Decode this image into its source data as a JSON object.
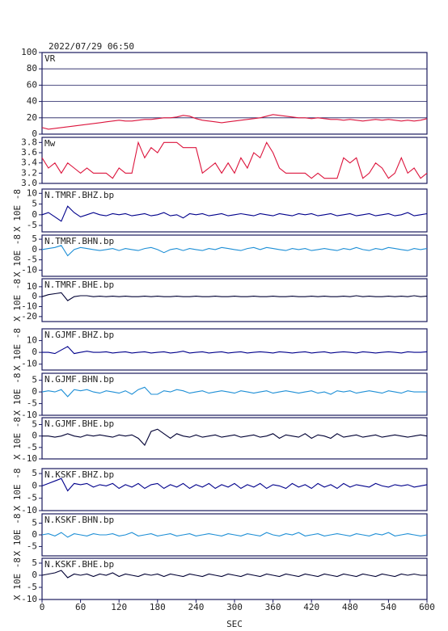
{
  "chart_data": {
    "type": "multi-panel",
    "title": "2022/07/29  06:50",
    "xlabel": "SEC",
    "xlim": [
      0,
      600
    ],
    "xticks": [
      0,
      60,
      120,
      180,
      240,
      300,
      360,
      420,
      480,
      540,
      600
    ],
    "x": [
      0,
      10,
      20,
      30,
      40,
      50,
      60,
      70,
      80,
      90,
      100,
      110,
      120,
      130,
      140,
      150,
      160,
      170,
      180,
      190,
      200,
      210,
      220,
      230,
      240,
      250,
      260,
      270,
      280,
      290,
      300,
      310,
      320,
      330,
      340,
      350,
      360,
      370,
      380,
      390,
      400,
      410,
      420,
      430,
      440,
      450,
      460,
      470,
      480,
      490,
      500,
      510,
      520,
      530,
      540,
      550,
      560,
      570,
      580,
      590,
      600
    ],
    "panels": [
      {
        "label": "VR",
        "color": "#dc143c",
        "ylim": [
          0,
          100
        ],
        "yticks": [
          0,
          20,
          40,
          60,
          80,
          100
        ],
        "grid": true,
        "values": [
          8,
          6,
          7,
          8,
          9,
          10,
          11,
          12,
          13,
          14,
          15,
          16,
          17,
          16,
          16,
          17,
          18,
          18,
          19,
          20,
          20,
          21,
          23,
          22,
          19,
          17,
          16,
          15,
          14,
          15,
          16,
          17,
          18,
          19,
          20,
          22,
          24,
          23,
          22,
          21,
          20,
          20,
          19,
          20,
          19,
          18,
          18,
          17,
          18,
          17,
          16,
          17,
          18,
          17,
          18,
          17,
          16,
          17,
          16,
          17,
          19
        ]
      },
      {
        "label": "Mw",
        "color": "#dc143c",
        "ylim": [
          3.0,
          3.9
        ],
        "yticks": [
          {
            "value": 3,
            "label": "3.0"
          },
          3.2,
          3.4,
          3.6,
          3.8
        ],
        "grid": false,
        "values": [
          3.5,
          3.3,
          3.4,
          3.2,
          3.4,
          3.3,
          3.2,
          3.3,
          3.2,
          3.2,
          3.2,
          3.1,
          3.3,
          3.2,
          3.2,
          3.8,
          3.5,
          3.7,
          3.6,
          3.8,
          3.8,
          3.8,
          3.7,
          3.7,
          3.7,
          3.2,
          3.3,
          3.4,
          3.2,
          3.4,
          3.2,
          3.5,
          3.3,
          3.6,
          3.5,
          3.8,
          3.6,
          3.3,
          3.2,
          3.2,
          3.2,
          3.2,
          3.1,
          3.2,
          3.1,
          3.1,
          3.1,
          3.5,
          3.4,
          3.5,
          3.1,
          3.2,
          3.4,
          3.3,
          3.1,
          3.2,
          3.5,
          3.2,
          3.3,
          3.1,
          3.2
        ]
      },
      {
        "label": "N.TMRF.BHZ.bp",
        "ylabel": "X 10E -8",
        "color": "#00008b",
        "ylim": [
          -8,
          12
        ],
        "yticks": [
          -5,
          0,
          5,
          10
        ],
        "grid": false,
        "values": [
          0,
          1,
          -1,
          -3,
          4,
          1,
          -1,
          0,
          1,
          0,
          -0.5,
          0.5,
          0,
          0.5,
          -0.5,
          0,
          0.5,
          -0.5,
          0,
          1,
          -0.5,
          0,
          -1.5,
          0.5,
          0,
          0.5,
          -0.5,
          0,
          0.5,
          -0.5,
          0,
          0.5,
          0,
          -0.5,
          0.5,
          0,
          -0.5,
          0.5,
          0,
          -0.5,
          0.5,
          0,
          0.5,
          -0.5,
          0,
          0.5,
          -0.5,
          0,
          0.5,
          -0.5,
          0,
          0.5,
          -0.5,
          0,
          0.5,
          -0.5,
          0,
          1,
          -0.5,
          0,
          0.5
        ]
      },
      {
        "label": "N.TMRF.BHN.bp",
        "ylabel": "X 10E -8",
        "color": "#1e8fd6",
        "ylim": [
          -13,
          7
        ],
        "yticks": [
          -10,
          -5,
          0,
          5
        ],
        "grid": false,
        "values": [
          0,
          0.5,
          1,
          2,
          -3,
          0,
          1,
          0.5,
          0,
          -0.5,
          0,
          0.5,
          -0.5,
          0.5,
          0,
          -0.5,
          0.5,
          1,
          0,
          -1.5,
          0,
          0.5,
          -0.5,
          0.5,
          0,
          -0.5,
          0.5,
          0,
          1,
          0.5,
          0,
          -0.5,
          0.5,
          1,
          0,
          1,
          0.5,
          0,
          -0.5,
          0.5,
          0,
          0.5,
          -0.5,
          0,
          0.5,
          0,
          -0.5,
          0.5,
          0,
          1,
          0,
          -0.5,
          0.5,
          0,
          1,
          0.5,
          0,
          -0.5,
          0.5,
          0,
          0.5
        ]
      },
      {
        "label": "N.TMRF.BHE.bp",
        "ylabel": "X 10E -8",
        "color": "#000033",
        "ylim": [
          -25,
          18
        ],
        "yticks": [
          -20,
          -10,
          0,
          10
        ],
        "grid": false,
        "values": [
          0,
          2,
          3,
          4,
          -4,
          0,
          1,
          1,
          0,
          0.5,
          0,
          0.5,
          0,
          0.5,
          0,
          0,
          0.5,
          0,
          0.5,
          0,
          0,
          0.5,
          0,
          0,
          0.5,
          0,
          0,
          0.5,
          0,
          0,
          0.5,
          0,
          0,
          0.5,
          0,
          0,
          0.5,
          0,
          0,
          0.5,
          0,
          0,
          0.5,
          0,
          0.5,
          0,
          0,
          0.5,
          0,
          1,
          0,
          0.5,
          0,
          0,
          0.5,
          0,
          0.5,
          0,
          1,
          0,
          0.5
        ]
      },
      {
        "label": "N.GJMF.BHZ.bp",
        "ylabel": "X 10E -8",
        "color": "#00008b",
        "ylim": [
          -15,
          20
        ],
        "yticks": [
          -10,
          0,
          10
        ],
        "grid": false,
        "values": [
          0,
          0,
          -1,
          2,
          5,
          -1,
          0,
          1,
          0,
          0,
          0.5,
          -0.5,
          0,
          0.5,
          -0.5,
          0,
          0.5,
          -0.5,
          0,
          0.5,
          -0.5,
          0,
          1,
          -0.5,
          0,
          0.5,
          -0.5,
          0,
          0.5,
          -0.5,
          0,
          0.5,
          -0.5,
          0,
          0.5,
          0,
          -0.5,
          0.5,
          0,
          -0.5,
          0,
          0.5,
          -0.5,
          0,
          0.5,
          -0.5,
          0,
          0.5,
          0,
          -0.5,
          0.5,
          0,
          -0.5,
          0,
          0.5,
          0,
          -0.5,
          0.5,
          0,
          0,
          0.5
        ]
      },
      {
        "label": "N.GJMF.BHN.bp",
        "ylabel": "X 10E -8",
        "color": "#1e8fd6",
        "ylim": [
          -10,
          8
        ],
        "yticks": [
          -10,
          -5,
          0,
          5
        ],
        "grid": false,
        "values": [
          0,
          0.5,
          0,
          1,
          -2,
          1,
          0.5,
          1,
          0,
          -0.5,
          0.5,
          0,
          -0.5,
          0.5,
          -1,
          1,
          2,
          -1,
          -1,
          0.5,
          0,
          1,
          0.5,
          -0.5,
          0,
          0.5,
          -0.5,
          0,
          0.5,
          0,
          -0.5,
          0.5,
          0,
          -0.5,
          0,
          0.5,
          -0.5,
          0,
          0.5,
          0,
          -0.5,
          0,
          0.5,
          -0.5,
          0,
          -1,
          0.5,
          0,
          0.5,
          -0.5,
          0,
          0.5,
          0,
          -0.5,
          0.5,
          0,
          -0.5,
          0.5,
          0,
          0,
          0
        ]
      },
      {
        "label": "N.GJMF.BHE.bp",
        "ylabel": "X 10E -8",
        "color": "#000033",
        "ylim": [
          -10,
          8
        ],
        "yticks": [
          -10,
          -5,
          0,
          5
        ],
        "grid": false,
        "values": [
          0,
          0,
          -0.5,
          0,
          1,
          0,
          -0.5,
          0.5,
          0,
          0.5,
          0,
          -0.5,
          0.5,
          0,
          0.5,
          -1,
          -4,
          2,
          3,
          1,
          -1,
          1,
          0,
          -0.5,
          0.5,
          -0.5,
          0,
          0.5,
          -0.5,
          0,
          0.5,
          -0.5,
          0,
          0.5,
          -0.5,
          0,
          1,
          -1,
          0.5,
          0,
          -0.5,
          1,
          -1,
          0.5,
          0,
          -1,
          1,
          -0.5,
          0,
          0.5,
          -0.5,
          0,
          0.5,
          -0.5,
          0,
          0.5,
          0,
          -0.5,
          0,
          0.5,
          0
        ]
      },
      {
        "label": "N.KSKF.BHZ.bp",
        "ylabel": "X 10E -8",
        "color": "#00008b",
        "ylim": [
          -10,
          7
        ],
        "yticks": [
          -10,
          -5,
          0,
          5
        ],
        "grid": false,
        "values": [
          0,
          1,
          2,
          3,
          -2,
          1,
          0.5,
          1,
          -0.5,
          0.5,
          0,
          1,
          -1,
          0.5,
          -0.5,
          1,
          -1,
          0.5,
          1,
          -1,
          0.5,
          -0.5,
          1,
          -1,
          0.5,
          -0.5,
          1,
          -1,
          0.5,
          -0.5,
          1,
          -1,
          0.5,
          -0.5,
          1,
          -1,
          0.5,
          0,
          -1,
          1,
          -0.5,
          0.5,
          -1,
          1,
          -0.5,
          0.5,
          -1,
          1,
          -0.5,
          0.5,
          0,
          -0.5,
          1,
          0,
          -0.5,
          0.5,
          0,
          0.5,
          -0.5,
          0,
          0.5
        ]
      },
      {
        "label": "N.KSKF.BHN.bp",
        "ylabel": "X 10E -8",
        "color": "#1e8fd6",
        "ylim": [
          -9,
          9
        ],
        "yticks": [
          -5,
          0,
          5
        ],
        "grid": false,
        "values": [
          0,
          0.5,
          -0.5,
          1,
          -1,
          0.5,
          0,
          -0.5,
          0.5,
          0,
          0,
          0.5,
          -0.5,
          0,
          1,
          -0.5,
          0,
          0.5,
          -0.5,
          0,
          0.5,
          -0.5,
          0,
          0.5,
          -0.5,
          0,
          0.5,
          0,
          -0.5,
          0.5,
          0,
          -0.5,
          0.5,
          0,
          -0.5,
          1,
          0,
          -0.5,
          0.5,
          0,
          1,
          -0.5,
          0,
          0.5,
          -0.5,
          0,
          0.5,
          0,
          -0.5,
          0.5,
          0,
          -0.5,
          0.5,
          0,
          1,
          -0.5,
          0,
          0.5,
          0,
          -0.5,
          0
        ]
      },
      {
        "label": "N.KSKF.BHE.bp",
        "ylabel": "X 10E -8",
        "color": "#000033",
        "ylim": [
          -10,
          7
        ],
        "yticks": [
          -10,
          -5,
          0,
          5
        ],
        "grid": false,
        "values": [
          0,
          0.5,
          1,
          2,
          -1,
          0.5,
          0,
          0.5,
          -0.5,
          0.5,
          0,
          1,
          -0.5,
          0.5,
          0,
          -0.5,
          0.5,
          0,
          0.5,
          -0.5,
          0.5,
          0,
          -0.5,
          0.5,
          0,
          -0.5,
          0.5,
          0,
          -0.5,
          0.5,
          0,
          -0.5,
          0.5,
          0,
          -0.5,
          0.5,
          0,
          -0.5,
          0.5,
          0,
          -0.5,
          0.5,
          0,
          -0.5,
          0.5,
          0,
          -0.5,
          0.5,
          0,
          -0.5,
          0.5,
          0,
          -0.5,
          0.5,
          0,
          -0.5,
          0.5,
          0,
          0.5,
          0,
          0
        ]
      }
    ]
  }
}
